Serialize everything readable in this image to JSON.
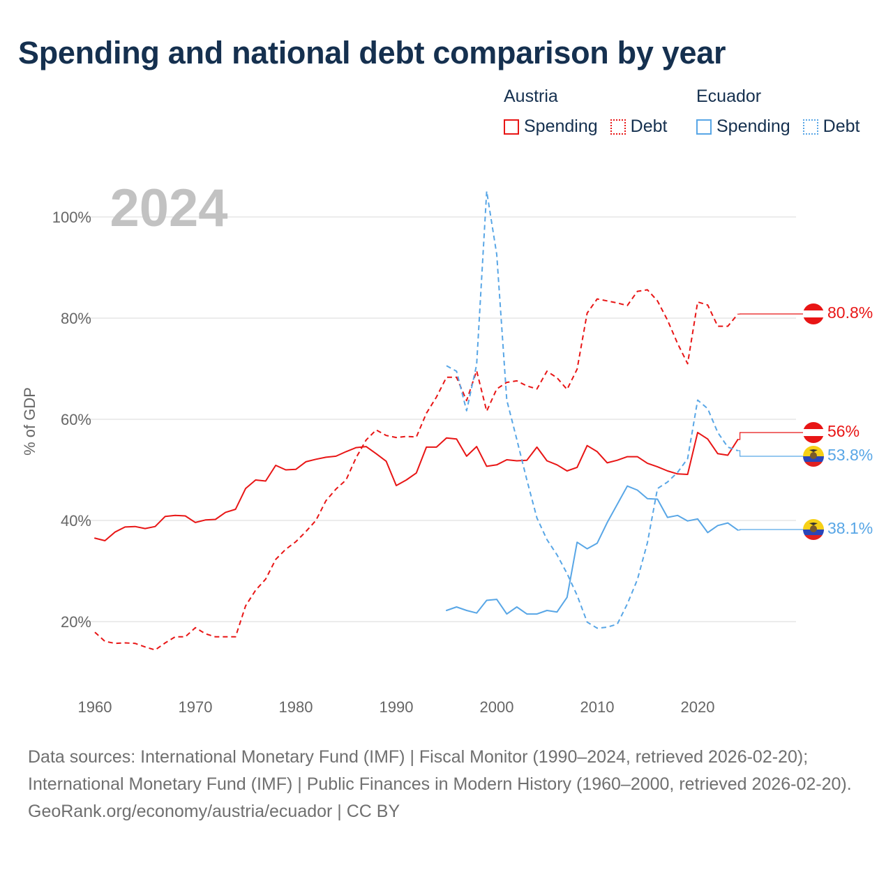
{
  "title": "Spending and national debt comparison by year",
  "legend": [
    {
      "country": "Austria",
      "color": "#e81515",
      "items": [
        {
          "label": "Spending",
          "style": "solid"
        },
        {
          "label": "Debt",
          "style": "dotted"
        }
      ]
    },
    {
      "country": "Ecuador",
      "color": "#58a6e6",
      "items": [
        {
          "label": "Spending",
          "style": "solid"
        },
        {
          "label": "Debt",
          "style": "dotted"
        }
      ]
    }
  ],
  "footer": {
    "sources": "Data sources: International Monetary Fund (IMF) | Fiscal Monitor (1990–2024, retrieved 2026-02-20); International Monetary Fund (IMF) | Public Finances in Modern History (1960–2000, retrieved 2026-02-20).",
    "credit": "GeoRank.org/economy/austria/ecuador | CC BY"
  },
  "chart_data": {
    "type": "line",
    "year_label": "2024",
    "ylabel": "% of GDP",
    "xlim": [
      1960,
      2025
    ],
    "ylim": [
      8,
      108
    ],
    "x_ticks": [
      1960,
      1970,
      1980,
      1990,
      2000,
      2010,
      2020
    ],
    "y_ticks": [
      {
        "value": 20,
        "label": "20%"
      },
      {
        "value": 40,
        "label": "40%"
      },
      {
        "value": 60,
        "label": "60%"
      },
      {
        "value": 80,
        "label": "80%"
      },
      {
        "value": 100,
        "label": "100%"
      }
    ],
    "grid": true,
    "series": [
      {
        "name": "Austria Spending",
        "country": "Austria",
        "measure": "Spending",
        "color": "#e81515",
        "dash": "solid",
        "x": [
          1960,
          1961,
          1962,
          1963,
          1964,
          1965,
          1966,
          1967,
          1968,
          1969,
          1970,
          1971,
          1972,
          1973,
          1974,
          1975,
          1976,
          1977,
          1978,
          1979,
          1980,
          1981,
          1982,
          1983,
          1984,
          1985,
          1986,
          1987,
          1988,
          1989,
          1990,
          1991,
          1992,
          1993,
          1994,
          1995,
          1996,
          1997,
          1998,
          1999,
          2000,
          2001,
          2002,
          2003,
          2004,
          2005,
          2006,
          2007,
          2008,
          2009,
          2010,
          2011,
          2012,
          2013,
          2014,
          2015,
          2016,
          2017,
          2018,
          2019,
          2020,
          2021,
          2022,
          2023,
          2024
        ],
        "y": [
          36.5,
          36.0,
          37.7,
          38.7,
          38.8,
          38.4,
          38.8,
          40.8,
          41.0,
          40.9,
          39.6,
          40.1,
          40.2,
          41.6,
          42.2,
          46.3,
          48.0,
          47.8,
          50.9,
          50.0,
          50.1,
          51.6,
          52.1,
          52.5,
          52.7,
          53.6,
          54.4,
          54.6,
          53.2,
          51.7,
          46.9,
          48.0,
          49.4,
          54.5,
          54.5,
          56.3,
          56.1,
          52.7,
          54.6,
          50.7,
          51.0,
          52.0,
          51.8,
          51.9,
          54.5,
          51.8,
          51.0,
          49.8,
          50.5,
          54.8,
          53.6,
          51.4,
          51.9,
          52.6,
          52.6,
          51.3,
          50.6,
          49.8,
          49.2,
          49.1,
          57.4,
          56.1,
          53.2,
          52.9,
          56.0
        ],
        "end_label": "56%"
      },
      {
        "name": "Austria Debt",
        "country": "Austria",
        "measure": "Debt",
        "color": "#e81515",
        "dash": "dashed",
        "x": [
          1960,
          1961,
          1962,
          1963,
          1964,
          1965,
          1966,
          1967,
          1968,
          1969,
          1970,
          1971,
          1972,
          1973,
          1974,
          1975,
          1976,
          1977,
          1978,
          1979,
          1980,
          1981,
          1982,
          1983,
          1984,
          1985,
          1986,
          1987,
          1988,
          1989,
          1990,
          1991,
          1992,
          1993,
          1994,
          1995,
          1996,
          1997,
          1998,
          1999,
          2000,
          2001,
          2002,
          2003,
          2004,
          2005,
          2006,
          2007,
          2008,
          2009,
          2010,
          2011,
          2012,
          2013,
          2014,
          2015,
          2016,
          2017,
          2018,
          2019,
          2020,
          2021,
          2022,
          2023,
          2024
        ],
        "y": [
          17.9,
          16.1,
          15.7,
          15.8,
          15.7,
          15.0,
          14.4,
          15.8,
          17.0,
          17.0,
          18.8,
          17.6,
          17.0,
          17.0,
          17.0,
          23.1,
          26.2,
          28.4,
          32.3,
          34.3,
          35.8,
          37.8,
          40.0,
          43.9,
          46.2,
          48.0,
          52.4,
          55.9,
          57.9,
          56.8,
          56.4,
          56.6,
          56.5,
          61.2,
          64.4,
          68.3,
          68.3,
          63.7,
          69.6,
          61.6,
          66.0,
          67.3,
          67.6,
          66.6,
          66.0,
          69.5,
          68.2,
          65.9,
          69.9,
          81.0,
          83.8,
          83.4,
          83.0,
          82.5,
          85.3,
          85.6,
          83.4,
          79.6,
          75.0,
          71.0,
          83.2,
          82.6,
          78.4,
          78.4,
          80.8
        ],
        "end_label": "80.8%"
      },
      {
        "name": "Ecuador Spending",
        "country": "Ecuador",
        "measure": "Spending",
        "color": "#58a6e6",
        "dash": "solid",
        "x": [
          1995,
          1996,
          1997,
          1998,
          1999,
          2000,
          2001,
          2002,
          2003,
          2004,
          2005,
          2006,
          2007,
          2008,
          2009,
          2010,
          2011,
          2012,
          2013,
          2014,
          2015,
          2016,
          2017,
          2018,
          2019,
          2020,
          2021,
          2022,
          2023,
          2024
        ],
        "y": [
          22.2,
          22.9,
          22.2,
          21.7,
          24.2,
          24.4,
          21.5,
          22.9,
          21.5,
          21.5,
          22.2,
          21.9,
          24.8,
          35.7,
          34.4,
          35.5,
          39.6,
          43.2,
          46.8,
          46.0,
          44.3,
          44.2,
          40.6,
          41.0,
          39.9,
          40.3,
          37.6,
          39.0,
          39.5,
          38.1
        ],
        "end_label": "38.1%"
      },
      {
        "name": "Ecuador Debt",
        "country": "Ecuador",
        "measure": "Debt",
        "color": "#58a6e6",
        "dash": "dashed",
        "x": [
          1995,
          1996,
          1997,
          1998,
          1999,
          2000,
          2001,
          2002,
          2003,
          2004,
          2005,
          2006,
          2007,
          2008,
          2009,
          2010,
          2011,
          2012,
          2013,
          2014,
          2015,
          2016,
          2017,
          2018,
          2019,
          2020,
          2021,
          2022,
          2023,
          2024
        ],
        "y": [
          70.6,
          69.5,
          61.7,
          70.8,
          105.1,
          92.6,
          63.8,
          56.0,
          48.0,
          40.5,
          36.2,
          33.2,
          29.5,
          25.2,
          19.9,
          18.7,
          18.9,
          19.5,
          23.5,
          28.3,
          35.6,
          46.3,
          47.6,
          49.5,
          52.2,
          63.8,
          62.1,
          57.4,
          54.5,
          53.8
        ],
        "end_label": "53.8%"
      }
    ],
    "end_label_colors": {
      "Austria": "#e81515",
      "Ecuador": "#58a6e6"
    }
  }
}
